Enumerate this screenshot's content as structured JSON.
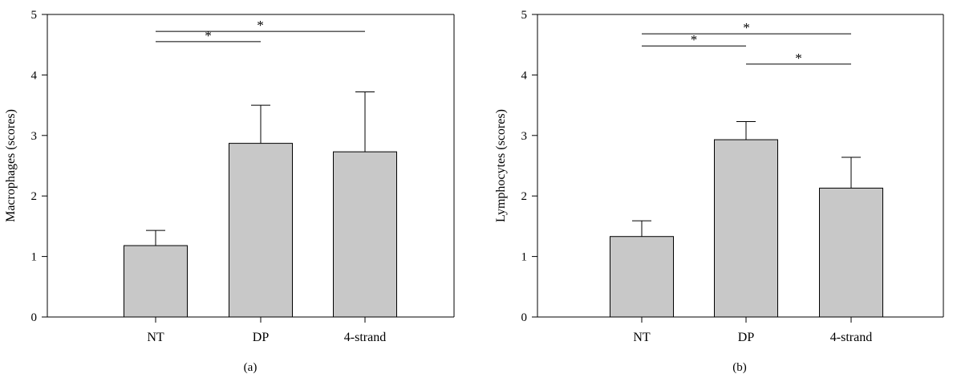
{
  "chart_data": [
    {
      "type": "bar",
      "panel_label": "(a)",
      "ylabel": "Macrophages (scores)",
      "xlabel": "",
      "categories": [
        "NT",
        "DP",
        "4-strand"
      ],
      "values": [
        1.18,
        2.87,
        2.73
      ],
      "errors": [
        0.25,
        0.63,
        0.99
      ],
      "ylim": [
        0,
        5
      ],
      "yticks": [
        0,
        1,
        2,
        3,
        4,
        5
      ],
      "bar_color": "#c8c8c8",
      "grid": false,
      "significance": [
        {
          "from": 0,
          "to": 1,
          "label": "*",
          "y": 4.55
        },
        {
          "from": 0,
          "to": 2,
          "label": "*",
          "y": 4.72
        }
      ]
    },
    {
      "type": "bar",
      "panel_label": "(b)",
      "ylabel": "Lymphocytes (scores)",
      "xlabel": "",
      "categories": [
        "NT",
        "DP",
        "4-strand"
      ],
      "values": [
        1.33,
        2.93,
        2.13
      ],
      "errors": [
        0.26,
        0.3,
        0.51
      ],
      "ylim": [
        0,
        5
      ],
      "yticks": [
        0,
        1,
        2,
        3,
        4,
        5
      ],
      "bar_color": "#c8c8c8",
      "grid": false,
      "significance": [
        {
          "from": 0,
          "to": 1,
          "label": "*",
          "y": 4.48
        },
        {
          "from": 0,
          "to": 2,
          "label": "*",
          "y": 4.68
        },
        {
          "from": 1,
          "to": 2,
          "label": "*",
          "y": 4.18
        }
      ]
    }
  ]
}
